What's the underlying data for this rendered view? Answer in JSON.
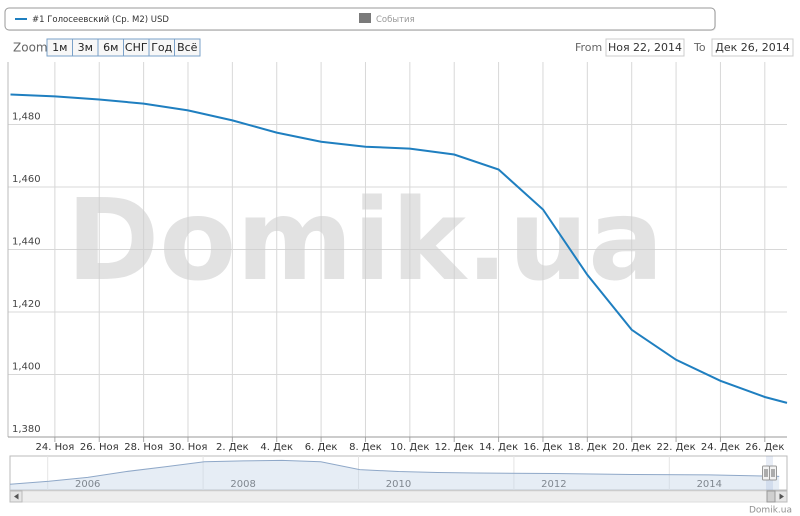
{
  "chart_data": {
    "type": "line",
    "series": [
      {
        "name": "#1 Голосеевский (Ср. М2) USD",
        "color": "#1f7fc0",
        "values": [
          1489.6,
          1489.0,
          1488.0,
          1486.7,
          1484.5,
          1481.3,
          1477.4,
          1474.5,
          1472.9,
          1472.3,
          1470.4,
          1465.6,
          1452.8,
          1431.9,
          1414.3,
          1404.7,
          1398.0,
          1392.8,
          1390.9
        ]
      }
    ],
    "x": [
      "2014-11-22",
      "2014-11-24",
      "2014-11-26",
      "2014-11-28",
      "2014-11-30",
      "2014-12-02",
      "2014-12-04",
      "2014-12-06",
      "2014-12-08",
      "2014-12-10",
      "2014-12-12",
      "2014-12-14",
      "2014-12-16",
      "2014-12-18",
      "2014-12-20",
      "2014-12-22",
      "2014-12-24",
      "2014-12-26",
      "2014-12-27"
    ],
    "xlim": [
      "2014-11-22",
      "2014-12-27"
    ],
    "xticks": [
      {
        "value": "2014-11-24",
        "label": "24. Ноя"
      },
      {
        "value": "2014-11-26",
        "label": "26. Ноя"
      },
      {
        "value": "2014-11-28",
        "label": "28. Ноя"
      },
      {
        "value": "2014-11-30",
        "label": "30. Ноя"
      },
      {
        "value": "2014-12-02",
        "label": "2. Дек"
      },
      {
        "value": "2014-12-04",
        "label": "4. Дек"
      },
      {
        "value": "2014-12-06",
        "label": "6. Дек"
      },
      {
        "value": "2014-12-08",
        "label": "8. Дек"
      },
      {
        "value": "2014-12-10",
        "label": "10. Дек"
      },
      {
        "value": "2014-12-12",
        "label": "12. Дек"
      },
      {
        "value": "2014-12-14",
        "label": "14. Дек"
      },
      {
        "value": "2014-12-16",
        "label": "16. Дек"
      },
      {
        "value": "2014-12-18",
        "label": "18. Дек"
      },
      {
        "value": "2014-12-20",
        "label": "20. Дек"
      },
      {
        "value": "2014-12-22",
        "label": "22. Дек"
      },
      {
        "value": "2014-12-24",
        "label": "24. Дек"
      },
      {
        "value": "2014-12-26",
        "label": "26. Дек"
      }
    ],
    "ylim": [
      1380,
      1500
    ],
    "yticks": [
      {
        "value": 1380,
        "label": "1,380"
      },
      {
        "value": 1400,
        "label": "1,400"
      },
      {
        "value": 1420,
        "label": "1,420"
      },
      {
        "value": 1440,
        "label": "1,440"
      },
      {
        "value": 1460,
        "label": "1,460"
      },
      {
        "value": 1480,
        "label": "1,480"
      }
    ],
    "grid": true,
    "events": {
      "name": "События",
      "color": "#7a7a7a"
    },
    "watermark": "Domik.ua",
    "credit": "Domik.ua",
    "range_selector": {
      "zoom_label": "Zoom",
      "buttons": [
        "1м",
        "3м",
        "6м",
        "СНГ",
        "Год",
        "Всё"
      ],
      "from_label": "From",
      "from": "Ноя 22, 2014",
      "to_label": "To",
      "to": "Дек 26, 2014"
    },
    "navigator": {
      "xlim": [
        2005,
        2015
      ],
      "xticks": [
        2006,
        2008,
        2010,
        2012,
        2014
      ],
      "ylim": [
        0,
        3500
      ],
      "x": [
        2005.0,
        2005.5,
        2006.0,
        2006.5,
        2007.0,
        2007.5,
        2008.0,
        2008.5,
        2009.0,
        2009.5,
        2010.0,
        2010.5,
        2011.0,
        2012.0,
        2013.0,
        2014.0,
        2014.9
      ],
      "values": [
        600,
        900,
        1300,
        1900,
        2400,
        2900,
        3000,
        3050,
        2900,
        2100,
        1900,
        1800,
        1750,
        1700,
        1600,
        1550,
        1400
      ]
    }
  }
}
